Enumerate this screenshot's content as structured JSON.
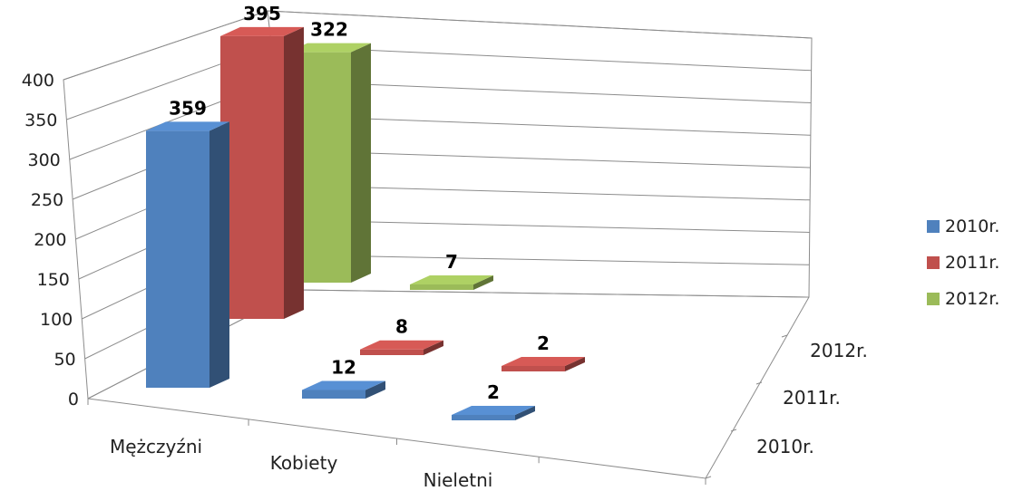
{
  "chart_data": {
    "type": "bar",
    "categories": [
      "Mężczyźni",
      "Kobiety",
      "Nieletni"
    ],
    "series": [
      {
        "name": "2010r.",
        "values": [
          359,
          12,
          2
        ],
        "color": "#4f81bd"
      },
      {
        "name": "2011r.",
        "values": [
          395,
          8,
          2
        ],
        "color": "#c0504d"
      },
      {
        "name": "2012r.",
        "values": [
          322,
          7,
          null
        ],
        "color": "#9bbb59"
      }
    ],
    "depth_labels": [
      "2012r.",
      "2011r.",
      "2010r."
    ],
    "yticks": [
      "0",
      "50",
      "100",
      "150",
      "200",
      "250",
      "300",
      "350",
      "400"
    ],
    "ylim": [
      0,
      400
    ],
    "data_labels": [
      "359",
      "12",
      "2",
      "395",
      "8",
      "2",
      "322",
      "7"
    ],
    "grid": true,
    "legend_position": "right",
    "three_d": true
  }
}
